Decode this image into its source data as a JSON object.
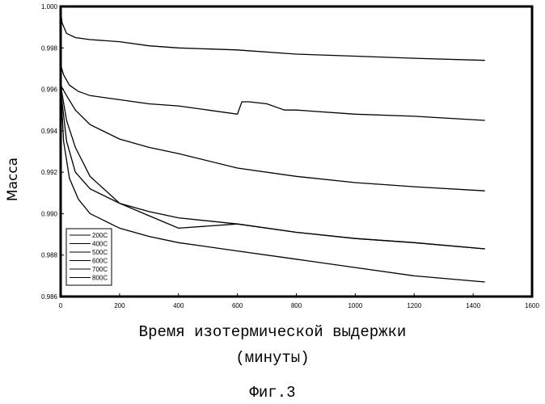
{
  "chart_data": {
    "type": "line",
    "xlabel_line1": "Время изотермической выдержки",
    "xlabel_line2": "(минуты)",
    "ylabel": "Масса",
    "figure_label": "Фиг.3",
    "xlim": [
      0,
      1600
    ],
    "ylim": [
      0.986,
      1.0
    ],
    "x_ticks": [
      "0",
      "200",
      "400",
      "600",
      "800",
      "1000",
      "1200",
      "1400",
      "1600"
    ],
    "y_ticks": [
      "0.986",
      "0.988",
      "0.990",
      "0.992",
      "0.994",
      "0.996",
      "0.998",
      "1.000"
    ],
    "legend_position": "bottom-left",
    "grid": false,
    "series": [
      {
        "name": "200C",
        "x": [
          0,
          5,
          20,
          50,
          100,
          200,
          300,
          400,
          600,
          800,
          1000,
          1200,
          1440
        ],
        "y": [
          0.9998,
          0.9992,
          0.9987,
          0.9985,
          0.9984,
          0.9983,
          0.9981,
          0.998,
          0.9979,
          0.9977,
          0.9976,
          0.9975,
          0.9974
        ]
      },
      {
        "name": "400C",
        "x": [
          0,
          10,
          30,
          60,
          100,
          200,
          300,
          400,
          500,
          600,
          615,
          640,
          700,
          740,
          760,
          800,
          1000,
          1200,
          1440
        ],
        "y": [
          0.9972,
          0.9967,
          0.9962,
          0.9959,
          0.9957,
          0.9955,
          0.9953,
          0.9952,
          0.995,
          0.9948,
          0.9954,
          0.9954,
          0.9953,
          0.9951,
          0.995,
          0.995,
          0.9948,
          0.9947,
          0.9945
        ]
      },
      {
        "name": "500C",
        "x": [
          0,
          20,
          50,
          100,
          200,
          300,
          400,
          600,
          800,
          1000,
          1200,
          1440
        ],
        "y": [
          0.9962,
          0.9957,
          0.995,
          0.9943,
          0.9936,
          0.9932,
          0.9929,
          0.9922,
          0.9918,
          0.9915,
          0.9913,
          0.9911
        ]
      },
      {
        "name": "600C",
        "x": [
          0,
          20,
          50,
          100,
          200,
          300,
          400,
          600,
          800,
          1000,
          1200,
          1440
        ],
        "y": [
          0.9962,
          0.9945,
          0.9932,
          0.9918,
          0.9905,
          0.9899,
          0.9893,
          0.9895,
          0.9891,
          0.9888,
          0.9886,
          0.9883
        ]
      },
      {
        "name": "700C",
        "x": [
          0,
          20,
          50,
          100,
          200,
          300,
          400,
          600,
          800,
          1000,
          1200,
          1440
        ],
        "y": [
          0.996,
          0.9935,
          0.992,
          0.9912,
          0.9905,
          0.9901,
          0.9898,
          0.9895,
          0.9891,
          0.9888,
          0.9886,
          0.9883
        ]
      },
      {
        "name": "800C",
        "x": [
          0,
          10,
          30,
          60,
          100,
          200,
          300,
          400,
          600,
          800,
          1000,
          1200,
          1440
        ],
        "y": [
          0.9962,
          0.9935,
          0.9917,
          0.9907,
          0.99,
          0.9893,
          0.9889,
          0.9886,
          0.9882,
          0.9878,
          0.9874,
          0.987,
          0.9867
        ]
      }
    ]
  }
}
